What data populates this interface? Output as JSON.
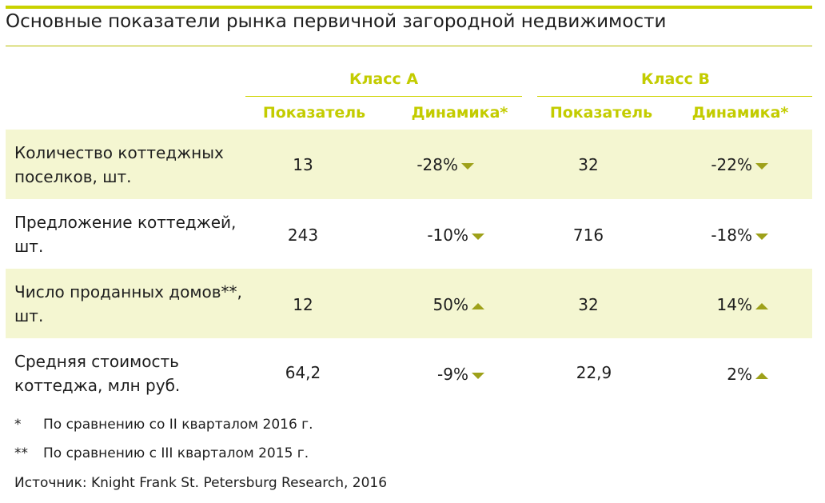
{
  "title": "Основные показатели рынка первичной загородной недвижимости",
  "colors": {
    "accent": "#c9d200",
    "header_text": "#c3cc00",
    "row_shade": "#f4f6d1",
    "arrow": "#9ea11a"
  },
  "header": {
    "class_a": "Класс А",
    "class_b": "Класс В",
    "col_value": "Показатель",
    "col_dynamics": "Динамика*"
  },
  "rows": [
    {
      "label": "Количество коттеджных поселков, шт.",
      "a_value": "13",
      "a_dyn": "-28%",
      "a_dir": "down",
      "b_value": "32",
      "b_dyn": "-22%",
      "b_dir": "down"
    },
    {
      "label": "Предложение коттеджей, шт.",
      "a_value": "243",
      "a_dyn": "-10%",
      "a_dir": "down",
      "b_value": "716",
      "b_dyn": "-18%",
      "b_dir": "down"
    },
    {
      "label": "Число проданных домов**, шт.",
      "a_value": "12",
      "a_dyn": "50%",
      "a_dir": "up",
      "b_value": "32",
      "b_dyn": "14%",
      "b_dir": "up"
    },
    {
      "label": "Средняя стоимость коттеджа, млн руб.",
      "a_value": "64,2",
      "a_dyn": "-9%",
      "a_dir": "down",
      "b_value": "22,9",
      "b_dyn": "2%",
      "b_dir": "up"
    }
  ],
  "footnotes": {
    "note1_mark": "*",
    "note1_text": "По сравнению со II кварталом 2016 г.",
    "note2_mark": "**",
    "note2_text": "По сравнению с III кварталом 2015 г.",
    "source": "Источник: Knight Frank St. Petersburg Research, 2016"
  }
}
